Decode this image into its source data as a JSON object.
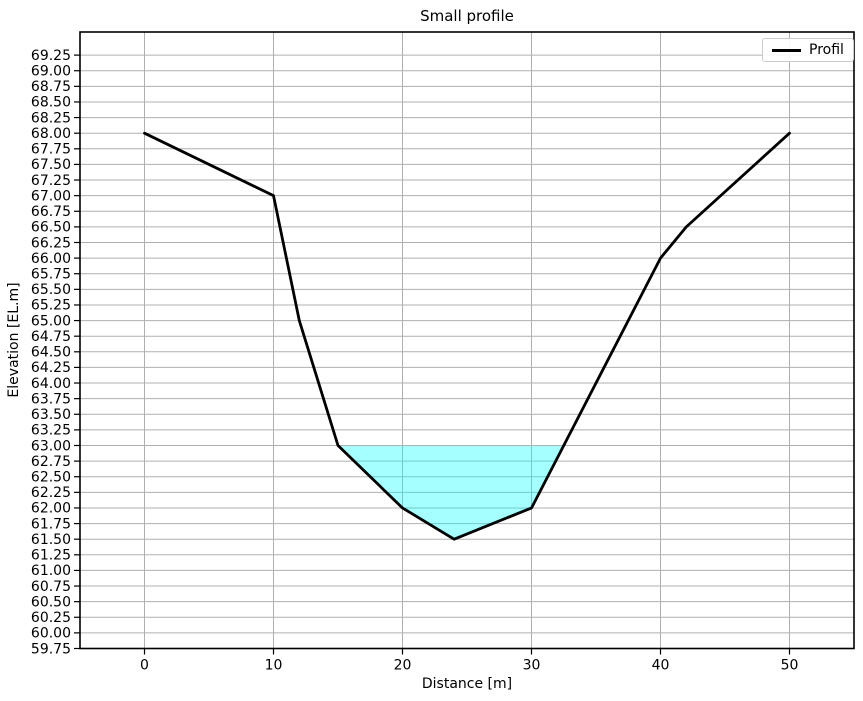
{
  "chart_data": {
    "type": "line",
    "title": "Small profile",
    "xlabel": "Distance [m]",
    "ylabel": "Elevation [EL.m]",
    "series": [
      {
        "name": "Profil",
        "x": [
          0,
          10,
          12,
          15,
          20,
          24,
          30,
          40,
          42,
          50
        ],
        "y": [
          68,
          67,
          65,
          63,
          62,
          61.5,
          62,
          66,
          66.5,
          68
        ],
        "color": "#000000",
        "linewidth": 2.8
      }
    ],
    "water_polygon": {
      "surface_elevation": 63.0,
      "x": [
        15,
        20,
        24,
        30,
        32.5
      ],
      "y": [
        63,
        62,
        61.5,
        62,
        63
      ],
      "fill_color": "#00ffff",
      "fill_opacity": 0.35
    },
    "xlim": [
      -5,
      55
    ],
    "ylim": [
      59.75,
      69.62
    ],
    "xticks": {
      "values": [
        0,
        10,
        20,
        30,
        40,
        50
      ],
      "labels": [
        "0",
        "10",
        "20",
        "30",
        "40",
        "50"
      ]
    },
    "yticks": {
      "values": [
        59.75,
        60.0,
        60.25,
        60.5,
        60.75,
        61.0,
        61.25,
        61.5,
        61.75,
        62.0,
        62.25,
        62.5,
        62.75,
        63.0,
        63.25,
        63.5,
        63.75,
        64.0,
        64.25,
        64.5,
        64.75,
        65.0,
        65.25,
        65.5,
        65.75,
        66.0,
        66.25,
        66.5,
        66.75,
        67.0,
        67.25,
        67.5,
        67.75,
        68.0,
        68.25,
        68.5,
        68.75,
        69.0,
        69.25
      ],
      "labels": [
        "59.75",
        "60.00",
        "60.25",
        "60.50",
        "60.75",
        "61.00",
        "61.25",
        "61.50",
        "61.75",
        "62.00",
        "62.25",
        "62.50",
        "62.75",
        "63.00",
        "63.25",
        "63.50",
        "63.75",
        "64.00",
        "64.25",
        "64.50",
        "64.75",
        "65.00",
        "65.25",
        "65.50",
        "65.75",
        "66.00",
        "66.25",
        "66.50",
        "66.75",
        "67.00",
        "67.25",
        "67.50",
        "67.75",
        "68.00",
        "68.25",
        "68.50",
        "68.75",
        "69.00",
        "69.25"
      ]
    },
    "grid": true,
    "legend_position": "upper right",
    "colors": {
      "profile_line": "#000000",
      "water_fill": "#00ffff",
      "grid": "#b0b0b0",
      "spines": "#000000",
      "background": "#ffffff",
      "tick_text": "#000000",
      "legend_border": "#cccccc"
    }
  }
}
